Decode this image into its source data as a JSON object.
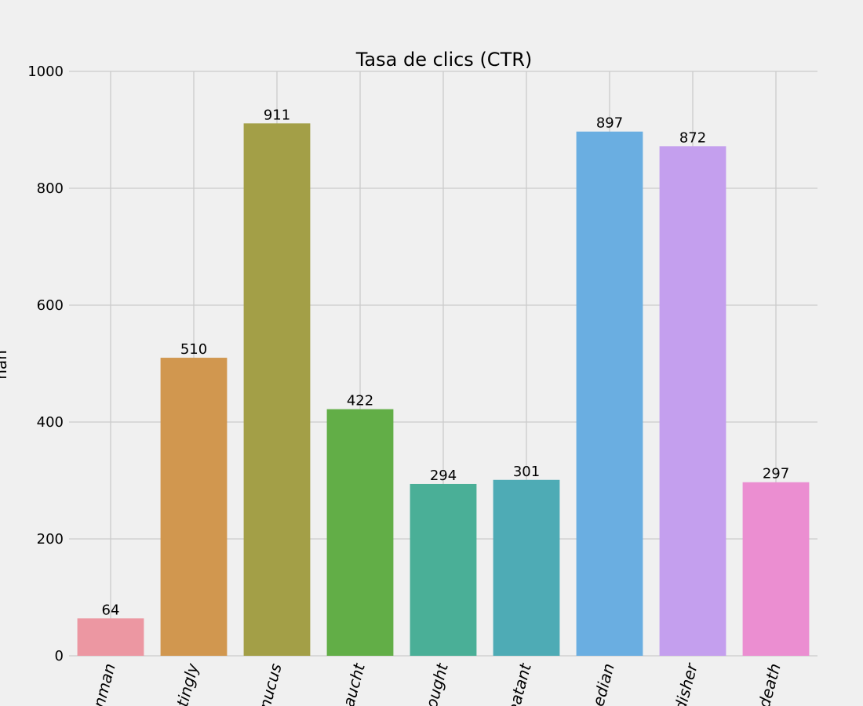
{
  "chart_data": {
    "type": "bar",
    "title": "Tasa de clics (CTR)",
    "ylabel": "nan",
    "xlabel": "",
    "categories": [
      "nman",
      "tingly",
      "nucus",
      "aucht",
      "ought",
      "eatant",
      "edian",
      "disher",
      "death"
    ],
    "values": [
      64,
      510,
      911,
      422,
      294,
      301,
      897,
      872,
      297
    ],
    "colors": [
      "#ec97a2",
      "#d1974f",
      "#a39f47",
      "#62ae47",
      "#4aaf97",
      "#4eabb5",
      "#6aaee1",
      "#c49fee",
      "#eb8ed1"
    ],
    "ylim": [
      0,
      1000
    ],
    "yticks": [
      0,
      200,
      400,
      600,
      800,
      1000
    ],
    "grid": true,
    "legend": "none"
  }
}
